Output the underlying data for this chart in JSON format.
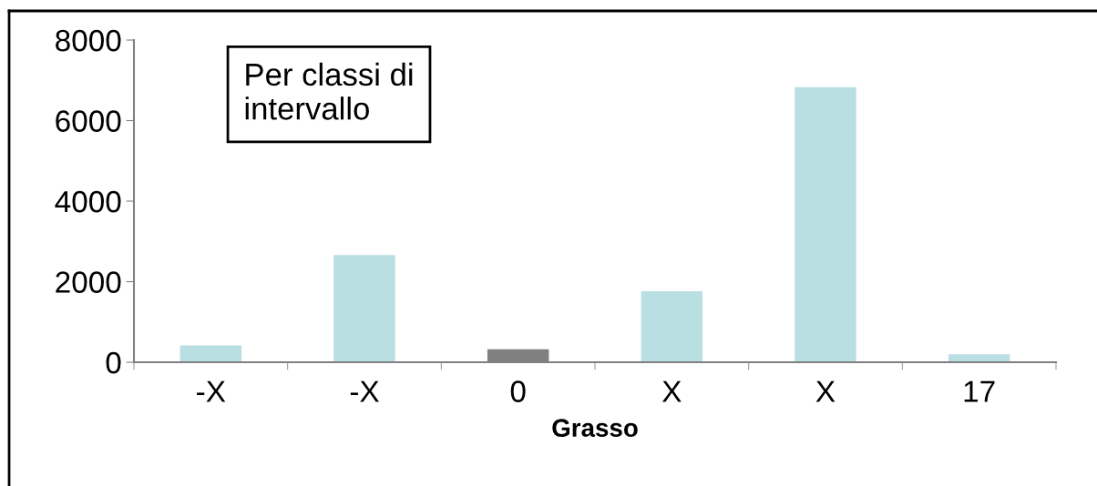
{
  "chart_data": {
    "type": "bar",
    "xlabel": "Grasso",
    "categories": [
      "-X",
      "-X",
      "0",
      "X",
      "X",
      "17"
    ],
    "values": [
      420,
      2660,
      320,
      1760,
      6830,
      200
    ],
    "colors": [
      "#b9dfe2",
      "#b9dfe2",
      "#808080",
      "#b9dfe2",
      "#b9dfe2",
      "#b9dfe2"
    ],
    "ylim": [
      0,
      8000
    ],
    "yticks": [
      0,
      2000,
      4000,
      6000,
      8000
    ],
    "grid": false,
    "annotations": [
      "Per classi di\nintervallo"
    ]
  }
}
